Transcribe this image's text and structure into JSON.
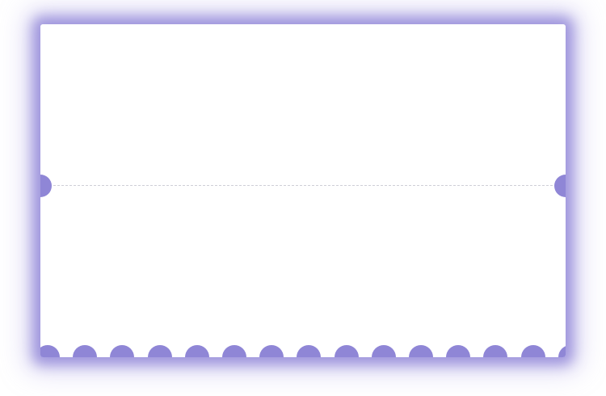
{
  "ticket": {
    "theme": {
      "background": "#ffffff",
      "glow": "#8f86d6",
      "perforation": "#cfcfd6"
    },
    "scallop_count": 15
  }
}
